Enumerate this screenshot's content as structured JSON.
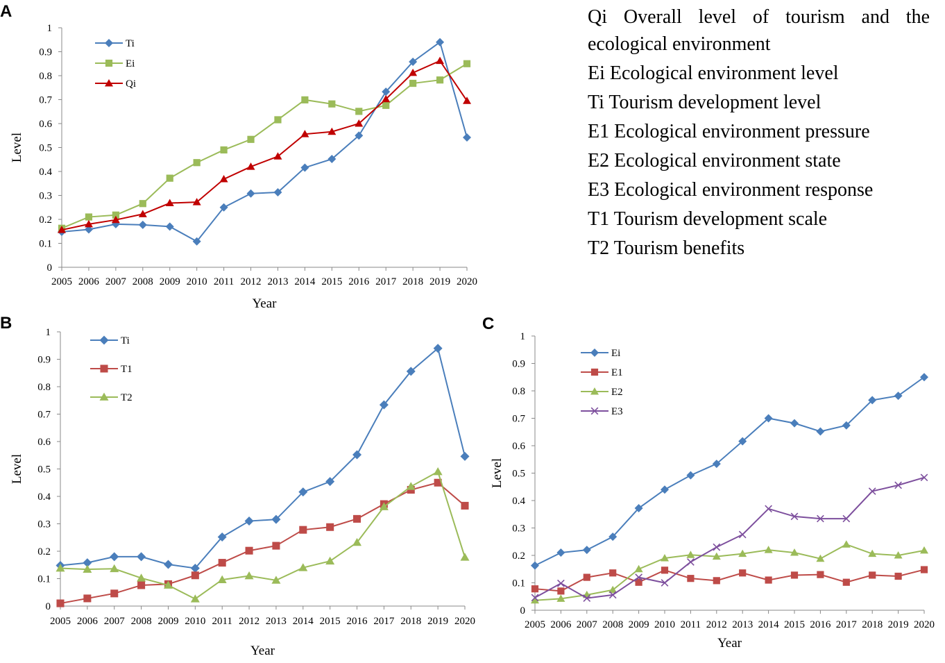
{
  "abbreviations": [
    "Qi Overall level of tourism and the",
    "ecological environment",
    "Ei Ecological environment level",
    "Ti Tourism development level",
    "E1 Ecological environment pressure",
    "E2 Ecological environment state",
    "E3 Ecological environment response",
    "T1 Tourism development scale",
    "T2 Tourism benefits"
  ],
  "colors": {
    "blue": "#4a7ebb",
    "green": "#9bbb59",
    "red": "#be4b48",
    "darkred": "#c00000",
    "purple": "#7d4f9d",
    "axis": "#888888"
  },
  "chart_data": [
    {
      "panel": "A",
      "type": "line",
      "title": "",
      "xlabel": "Year",
      "ylabel": "Level",
      "ylim": [
        0,
        1
      ],
      "yticks": [
        "0",
        "0.1",
        "0.2",
        "0.3",
        "0.4",
        "0.5",
        "0.6",
        "0.7",
        "0.8",
        "0.9",
        "1"
      ],
      "categories": [
        "2005",
        "2006",
        "2007",
        "2008",
        "2009",
        "2010",
        "2011",
        "2012",
        "2013",
        "2014",
        "2015",
        "2016",
        "2017",
        "2018",
        "2019",
        "2020"
      ],
      "legend": "top-left",
      "series": [
        {
          "name": "Ti",
          "color": "#4a7ebb",
          "marker": "diamond",
          "values": [
            0.148,
            0.158,
            0.18,
            0.177,
            0.17,
            0.108,
            0.25,
            0.308,
            0.313,
            0.416,
            0.452,
            0.55,
            0.733,
            0.858,
            0.94,
            0.542
          ]
        },
        {
          "name": "Ei",
          "color": "#9bbb59",
          "marker": "square",
          "values": [
            0.163,
            0.21,
            0.218,
            0.266,
            0.372,
            0.437,
            0.49,
            0.534,
            0.616,
            0.699,
            0.682,
            0.651,
            0.676,
            0.768,
            0.782,
            0.85
          ]
        },
        {
          "name": "Qi",
          "color": "#c00000",
          "marker": "triangle",
          "values": [
            0.156,
            0.18,
            0.198,
            0.222,
            0.268,
            0.272,
            0.368,
            0.42,
            0.463,
            0.556,
            0.566,
            0.6,
            0.702,
            0.812,
            0.862,
            0.695
          ]
        }
      ]
    },
    {
      "panel": "B",
      "type": "line",
      "title": "",
      "xlabel": "Year",
      "ylabel": "Level",
      "ylim": [
        0,
        1
      ],
      "yticks": [
        "0",
        "0.1",
        "0.2",
        "0.3",
        "0.4",
        "0.5",
        "0.6",
        "0.7",
        "0.8",
        "0.9",
        "1"
      ],
      "categories": [
        "2005",
        "2006",
        "2007",
        "2008",
        "2009",
        "2010",
        "2011",
        "2012",
        "2013",
        "2014",
        "2015",
        "2016",
        "2017",
        "2018",
        "2019",
        "2020"
      ],
      "legend": "top-left",
      "series": [
        {
          "name": "Ti",
          "color": "#4a7ebb",
          "marker": "diamond",
          "values": [
            0.148,
            0.158,
            0.18,
            0.18,
            0.152,
            0.138,
            0.252,
            0.31,
            0.316,
            0.416,
            0.454,
            0.552,
            0.734,
            0.856,
            0.94,
            0.546
          ]
        },
        {
          "name": "T1",
          "color": "#be4b48",
          "marker": "square",
          "values": [
            0.01,
            0.028,
            0.046,
            0.076,
            0.08,
            0.112,
            0.158,
            0.202,
            0.22,
            0.278,
            0.288,
            0.318,
            0.372,
            0.424,
            0.45,
            0.366
          ]
        },
        {
          "name": "T2",
          "color": "#9bbb59",
          "marker": "triangle",
          "values": [
            0.138,
            0.134,
            0.136,
            0.102,
            0.076,
            0.026,
            0.096,
            0.11,
            0.094,
            0.14,
            0.164,
            0.232,
            0.362,
            0.436,
            0.49,
            0.178
          ]
        }
      ]
    },
    {
      "panel": "C",
      "type": "line",
      "title": "",
      "xlabel": "Year",
      "ylabel": "Level",
      "ylim": [
        0,
        1
      ],
      "yticks": [
        "0",
        "0.1",
        "0.2",
        "0.3",
        "0.4",
        "0.5",
        "0.6",
        "0.7",
        "0.8",
        "0.9",
        "1"
      ],
      "categories": [
        "2005",
        "2006",
        "2007",
        "2008",
        "2009",
        "2010",
        "2011",
        "2012",
        "2013",
        "2014",
        "2015",
        "2016",
        "2017",
        "2018",
        "2019",
        "2020"
      ],
      "legend": "top-left",
      "series": [
        {
          "name": "Ei",
          "color": "#4a7ebb",
          "marker": "diamond",
          "values": [
            0.163,
            0.21,
            0.22,
            0.268,
            0.372,
            0.44,
            0.492,
            0.534,
            0.616,
            0.7,
            0.682,
            0.652,
            0.674,
            0.766,
            0.782,
            0.85
          ]
        },
        {
          "name": "E1",
          "color": "#be4b48",
          "marker": "square",
          "values": [
            0.078,
            0.07,
            0.12,
            0.136,
            0.102,
            0.146,
            0.116,
            0.108,
            0.136,
            0.11,
            0.128,
            0.13,
            0.102,
            0.128,
            0.124,
            0.148
          ]
        },
        {
          "name": "E2",
          "color": "#9bbb59",
          "marker": "triangle",
          "values": [
            0.036,
            0.042,
            0.056,
            0.074,
            0.15,
            0.19,
            0.202,
            0.196,
            0.206,
            0.22,
            0.21,
            0.188,
            0.24,
            0.206,
            0.2,
            0.218
          ]
        },
        {
          "name": "E3",
          "color": "#7d4f9d",
          "marker": "x",
          "values": [
            0.046,
            0.098,
            0.044,
            0.056,
            0.12,
            0.1,
            0.176,
            0.23,
            0.276,
            0.37,
            0.342,
            0.334,
            0.334,
            0.434,
            0.456,
            0.484
          ]
        }
      ]
    }
  ]
}
